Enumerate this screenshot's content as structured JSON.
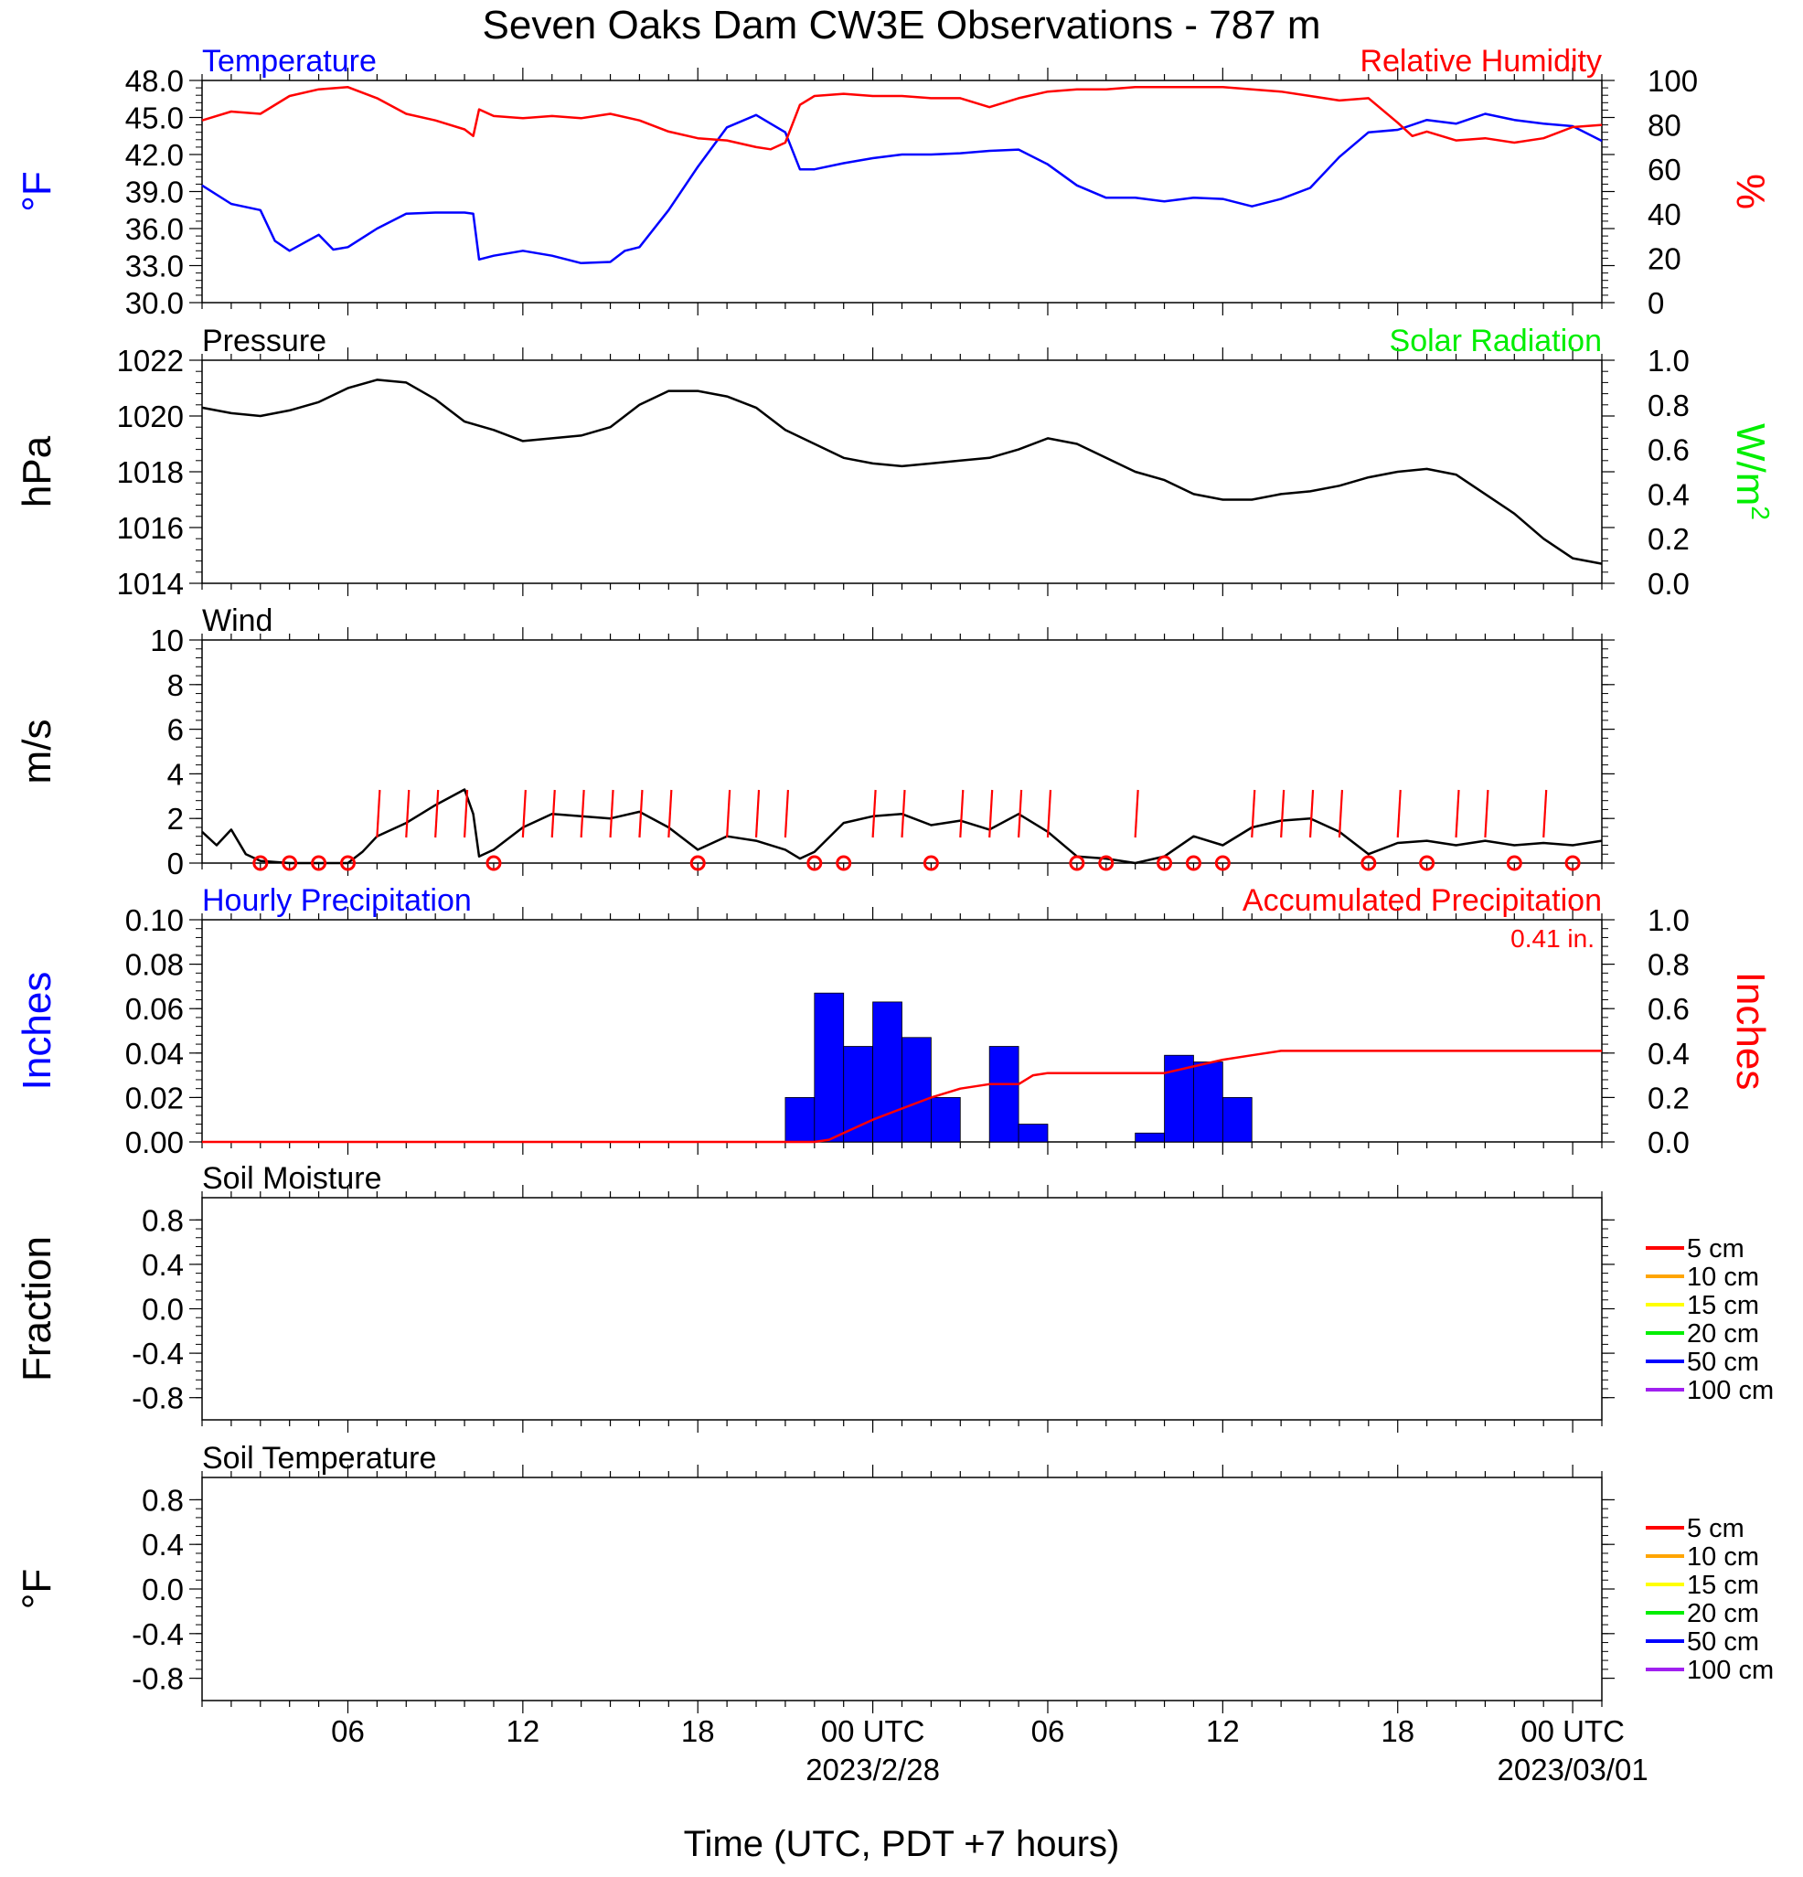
{
  "figure": {
    "title": "Seven Oaks Dam CW3E Observations - 787 m",
    "xlabel": "Time (UTC, PDT +7 hours)"
  },
  "time_axis": {
    "unit": "hours since 2023-02-27 00 UTC",
    "range": [
      1,
      49
    ],
    "ticks": [
      {
        "hour": 6,
        "label": "06",
        "date": ""
      },
      {
        "hour": 12,
        "label": "12",
        "date": ""
      },
      {
        "hour": 18,
        "label": "18",
        "date": ""
      },
      {
        "hour": 24,
        "label": "00 UTC",
        "date": "2023/2/28"
      },
      {
        "hour": 30,
        "label": "06",
        "date": ""
      },
      {
        "hour": 36,
        "label": "12",
        "date": ""
      },
      {
        "hour": 42,
        "label": "18",
        "date": ""
      },
      {
        "hour": 48,
        "label": "00 UTC",
        "date": "2023/03/01"
      }
    ]
  },
  "colors": {
    "temperature": "#0000ff",
    "humidity": "#ff0000",
    "pressure": "#000000",
    "solar": "#00ee00",
    "wind": "#000000",
    "wind_barb": "#ff0000",
    "hourly_precip": "#0000ff",
    "accum_precip": "#ff0000"
  },
  "chart_data": [
    {
      "type": "line",
      "panel": "temp-rh",
      "left_title": "Temperature",
      "right_title": "Relative Humidity",
      "ylabel_left": "°F",
      "ylabel_right": "%",
      "ylim_left": [
        30,
        48
      ],
      "ylim_right": [
        0,
        100
      ],
      "yticks_left": [
        "48.0",
        "45.0",
        "42.0",
        "39.0",
        "36.0",
        "33.0",
        "30.0"
      ],
      "yticks_right": [
        "100",
        "80",
        "60",
        "40",
        "20",
        "0"
      ],
      "series": [
        {
          "name": "Temperature",
          "axis": "left",
          "x": [
            1,
            2,
            3,
            3.5,
            4,
            5,
            5.5,
            6,
            7,
            8,
            9,
            10,
            10.3,
            10.5,
            11,
            12,
            13,
            14,
            15,
            15.5,
            16,
            17,
            18,
            19,
            20,
            20.5,
            21,
            21.5,
            22,
            23,
            24,
            25,
            26,
            27,
            28,
            29,
            30,
            31,
            32,
            33,
            34,
            35,
            36,
            37,
            38,
            39,
            40,
            41,
            42,
            43,
            44,
            45,
            46,
            47,
            48,
            49
          ],
          "y": [
            39.5,
            38,
            37.5,
            35,
            34.2,
            35.5,
            34.3,
            34.5,
            36,
            37.2,
            37.3,
            37.3,
            37.2,
            33.5,
            33.8,
            34.2,
            33.8,
            33.2,
            33.3,
            34.2,
            34.5,
            37.5,
            41,
            44.2,
            45.2,
            44.5,
            43.8,
            40.8,
            40.8,
            41.3,
            41.7,
            42,
            42,
            42.1,
            42.3,
            42.4,
            41.2,
            39.5,
            38.5,
            38.5,
            38.2,
            38.5,
            38.4,
            37.8,
            38.4,
            39.3,
            41.8,
            43.8,
            44,
            44.8,
            44.5,
            45.3,
            44.8,
            44.5,
            44.3,
            43.1
          ]
        },
        {
          "name": "Relative Humidity",
          "axis": "right",
          "x": [
            1,
            2,
            3,
            4,
            5,
            6,
            7,
            8,
            9,
            10,
            10.3,
            10.5,
            11,
            12,
            13,
            14,
            15,
            16,
            17,
            18,
            19,
            20,
            20.5,
            21,
            21.5,
            22,
            23,
            24,
            25,
            26,
            27,
            28,
            29,
            30,
            31,
            32,
            33,
            34,
            35,
            36,
            37,
            38,
            39,
            40,
            41,
            42,
            42.5,
            43,
            44,
            45,
            46,
            47,
            48,
            49
          ],
          "y": [
            82,
            86,
            85,
            93,
            96,
            97,
            92,
            85,
            82,
            78,
            75,
            87,
            84,
            83,
            84,
            83,
            85,
            82,
            77,
            74,
            73,
            70,
            69,
            72,
            89,
            93,
            94,
            93,
            93,
            92,
            92,
            88,
            92,
            95,
            96,
            96,
            97,
            97,
            97,
            97,
            96,
            95,
            93,
            91,
            92,
            81,
            75,
            77,
            73,
            74,
            72,
            74,
            79,
            80
          ]
        }
      ]
    },
    {
      "type": "line",
      "panel": "pressure",
      "left_title": "Pressure",
      "right_title": "Solar Radiation",
      "ylabel_left": "hPa",
      "ylabel_right": "W/m",
      "ylabel_right_sup": "2",
      "ylim_left": [
        1014,
        1022
      ],
      "ylim_right": [
        0,
        1
      ],
      "yticks_left": [
        "1022",
        "1020",
        "1018",
        "1016",
        "1014"
      ],
      "yticks_right": [
        "1.0",
        "0.8",
        "0.6",
        "0.4",
        "0.2",
        "0.0"
      ],
      "series": [
        {
          "name": "Pressure",
          "axis": "left",
          "x": [
            1,
            2,
            3,
            4,
            5,
            6,
            7,
            8,
            9,
            10,
            11,
            12,
            13,
            14,
            15,
            16,
            17,
            18,
            19,
            20,
            21,
            22,
            23,
            24,
            25,
            26,
            27,
            28,
            29,
            30,
            31,
            32,
            33,
            34,
            35,
            36,
            37,
            38,
            39,
            40,
            41,
            42,
            43,
            44,
            45,
            46,
            47,
            48,
            49
          ],
          "y": [
            1020.3,
            1020.1,
            1020.0,
            1020.2,
            1020.5,
            1021.0,
            1021.3,
            1021.2,
            1020.6,
            1019.8,
            1019.5,
            1019.1,
            1019.2,
            1019.3,
            1019.6,
            1020.4,
            1020.9,
            1020.9,
            1020.7,
            1020.3,
            1019.5,
            1019.0,
            1018.5,
            1018.3,
            1018.2,
            1018.3,
            1018.4,
            1018.5,
            1018.8,
            1019.2,
            1019.0,
            1018.5,
            1018.0,
            1017.7,
            1017.2,
            1017.0,
            1017.0,
            1017.2,
            1017.3,
            1017.5,
            1017.8,
            1018.0,
            1018.1,
            1017.9,
            1017.2,
            1016.5,
            1015.6,
            1014.9,
            1014.7
          ]
        }
      ]
    },
    {
      "type": "line",
      "panel": "wind",
      "left_title": "Wind",
      "ylabel_left": "m/s",
      "ylim_left": [
        0,
        10
      ],
      "yticks_left": [
        "10",
        "8",
        "6",
        "4",
        "2",
        "0"
      ],
      "series": [
        {
          "name": "Wind",
          "axis": "left",
          "x": [
            1,
            1.5,
            2,
            2.5,
            3,
            4,
            5,
            6,
            6.5,
            7,
            8,
            9,
            10,
            10.3,
            10.5,
            11,
            12,
            13,
            14,
            15,
            16,
            17,
            18,
            19,
            20,
            21,
            21.5,
            22,
            23,
            24,
            25,
            26,
            27,
            28,
            29,
            30,
            31,
            32,
            33,
            34,
            35,
            36,
            37,
            38,
            39,
            40,
            41,
            42,
            43,
            44,
            45,
            46,
            47,
            48,
            49
          ],
          "y": [
            1.4,
            0.8,
            1.5,
            0.4,
            0.1,
            0.0,
            0.0,
            0.0,
            0.5,
            1.2,
            1.8,
            2.6,
            3.3,
            2.2,
            0.3,
            0.6,
            1.6,
            2.2,
            2.1,
            2.0,
            2.3,
            1.6,
            0.6,
            1.2,
            1.0,
            0.6,
            0.2,
            0.5,
            1.8,
            2.1,
            2.2,
            1.7,
            1.9,
            1.5,
            2.2,
            1.4,
            0.3,
            0.2,
            0.0,
            0.3,
            1.2,
            0.8,
            1.6,
            1.9,
            2.0,
            1.4,
            0.4,
            0.9,
            1.0,
            0.8,
            1.0,
            0.8,
            0.9,
            0.8,
            1.0
          ]
        }
      ],
      "barbs": {
        "calm_hours": [
          3,
          4,
          5,
          6,
          11,
          18,
          22,
          23,
          26,
          31,
          32,
          34,
          35,
          36,
          41,
          43,
          46,
          48
        ],
        "barb_hours": [
          7,
          8,
          9,
          10,
          12,
          13,
          14,
          15,
          16,
          17,
          19,
          20,
          21,
          24,
          25,
          27,
          28,
          29,
          30,
          33,
          37,
          38,
          39,
          40,
          42,
          44,
          45,
          47
        ]
      }
    },
    {
      "type": "bar",
      "panel": "precipitation",
      "left_title": "Hourly Precipitation",
      "right_title": "Accumulated Precipitation",
      "total_label": "0.41 in.",
      "ylabel_left": "Inches",
      "ylabel_right": "Inches",
      "ylim_left": [
        0,
        0.1
      ],
      "ylim_right": [
        0,
        1
      ],
      "yticks_left": [
        "0.10",
        "0.08",
        "0.06",
        "0.04",
        "0.02",
        "0.00"
      ],
      "yticks_right": [
        "1.0",
        "0.8",
        "0.6",
        "0.4",
        "0.2",
        "0.0"
      ],
      "series": [
        {
          "name": "Hourly Precipitation",
          "axis": "left",
          "x": [
            22,
            23,
            24,
            25,
            26,
            27,
            28,
            29,
            30,
            31,
            32,
            33,
            34,
            35,
            36,
            37,
            38
          ],
          "values": [
            0.02,
            0.067,
            0.043,
            0.063,
            0.047,
            0.02,
            0,
            0.043,
            0.008,
            0,
            0,
            0,
            0.004,
            0.039,
            0.036,
            0.02,
            0
          ]
        },
        {
          "name": "Accumulated Precipitation",
          "axis": "right",
          "x": [
            1,
            22,
            22.5,
            23,
            24,
            25,
            26,
            27,
            28,
            29,
            29.5,
            30,
            31,
            32,
            33,
            34,
            35,
            36,
            37,
            38,
            49
          ],
          "y": [
            0,
            0,
            0.01,
            0.04,
            0.1,
            0.15,
            0.2,
            0.24,
            0.26,
            0.26,
            0.3,
            0.31,
            0.31,
            0.31,
            0.31,
            0.31,
            0.34,
            0.37,
            0.39,
            0.41,
            0.41
          ]
        }
      ]
    },
    {
      "type": "line",
      "panel": "soil-moisture",
      "left_title": "Soil Moisture",
      "ylabel_left": "Fraction",
      "ylim_left": [
        -1,
        1
      ],
      "yticks_left": [
        "0.8",
        "0.4",
        "0.0",
        "-0.4",
        "-0.8"
      ],
      "legend": [
        {
          "name": "5 cm",
          "color": "#ff0000"
        },
        {
          "name": "10 cm",
          "color": "#ffa500"
        },
        {
          "name": "15 cm",
          "color": "#ffff00"
        },
        {
          "name": "20 cm",
          "color": "#00ee00"
        },
        {
          "name": "50 cm",
          "color": "#0000ff"
        },
        {
          "name": "100 cm",
          "color": "#a020f0"
        }
      ],
      "series": []
    },
    {
      "type": "line",
      "panel": "soil-temperature",
      "left_title": "Soil Temperature",
      "ylabel_left": "°F",
      "ylim_left": [
        -1,
        1
      ],
      "yticks_left": [
        "0.8",
        "0.4",
        "0.0",
        "-0.4",
        "-0.8"
      ],
      "legend": [
        {
          "name": "5 cm",
          "color": "#ff0000"
        },
        {
          "name": "10 cm",
          "color": "#ffa500"
        },
        {
          "name": "15 cm",
          "color": "#ffff00"
        },
        {
          "name": "20 cm",
          "color": "#00ee00"
        },
        {
          "name": "50 cm",
          "color": "#0000ff"
        },
        {
          "name": "100 cm",
          "color": "#a020f0"
        }
      ],
      "series": []
    }
  ]
}
